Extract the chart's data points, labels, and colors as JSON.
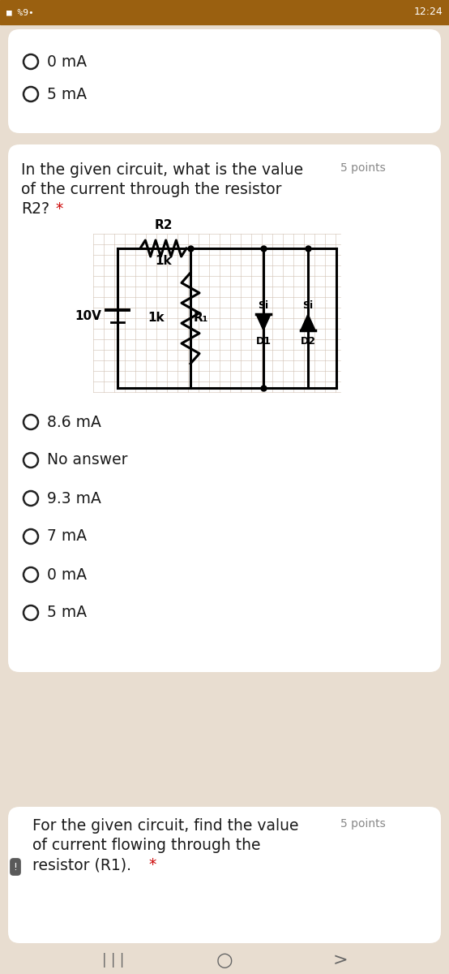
{
  "bg_color": "#e8ddd0",
  "card_color": "#ffffff",
  "statusbar_color": "#9a6010",
  "statusbar_text": "12:24",
  "top_options": [
    "0 mA",
    "5 mA"
  ],
  "question1_line1": "In the given circuit, what is the value",
  "question1_line2": "of the current through the resistor",
  "question1_line3": "R2?",
  "question1_points": "5 points",
  "q1_options": [
    "8.6 mA",
    "No answer",
    "9.3 mA",
    "7 mA",
    "0 mA",
    "5 mA"
  ],
  "question2_line1": "For the given circuit, find the value",
  "question2_line2": "of current flowing through the",
  "question2_line3": "resistor (R1).",
  "question2_points": "5 points",
  "radio_color": "#222222",
  "text_color": "#1a1a1a",
  "points_color": "#888888",
  "star_color": "#cc0000",
  "circuit_grid_color": "#d0c0b0",
  "circuit_line_color": "#000000",
  "nav_color": "#e8ddd0"
}
